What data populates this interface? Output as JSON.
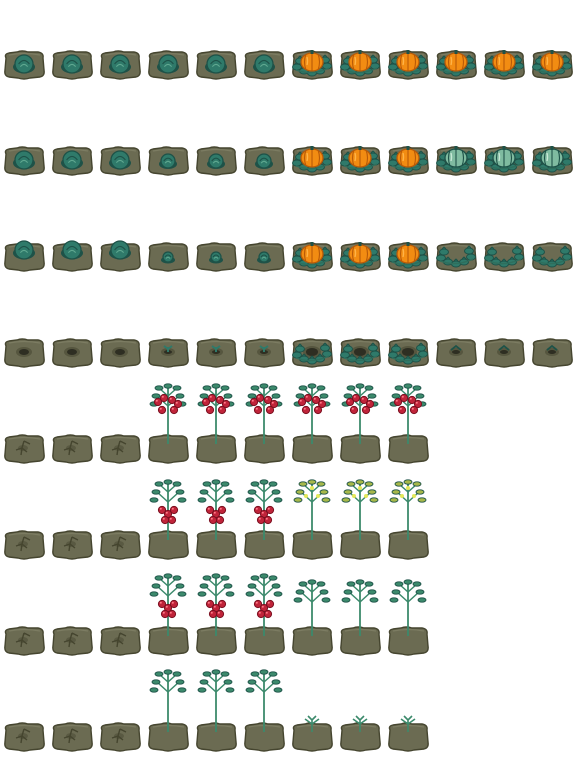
{
  "sprite_sheet": {
    "columns": 12,
    "rows": 8,
    "colors": {
      "soil": "#6b6b52",
      "soil_dark": "#45452f",
      "soil_light": "#83836a",
      "hole": "#2e2e22",
      "leaf": "#2f7a6a",
      "leaf_dark": "#1e5248",
      "leaf_light": "#5fa890",
      "cabbage_pale": "#7fbba0",
      "pumpkin": "#f28c12",
      "pumpkin_dark": "#b85a08",
      "pumpkin_light": "#ffb347",
      "stem": "#2f6e5c",
      "tomato": "#c0243a",
      "tomato_dark": "#7a1020",
      "tomato_light": "#ff7a88",
      "vine": "#3c8a6c",
      "vine_yellow": "#a6b84a"
    },
    "rows_data": [
      [
        "cabbage-3",
        "cabbage-3",
        "cabbage-3",
        "cabbage-3",
        "cabbage-3",
        "cabbage-3",
        "pumpkin-ripe",
        "pumpkin-ripe",
        "pumpkin-ripe",
        "pumpkin-ripe",
        "pumpkin-ripe",
        "pumpkin-ripe"
      ],
      [
        "cabbage-3",
        "cabbage-3",
        "cabbage-3",
        "cabbage-2",
        "cabbage-2",
        "cabbage-2",
        "pumpkin-ripe",
        "pumpkin-ripe",
        "pumpkin-ripe",
        "pumpkin-green",
        "pumpkin-green",
        "pumpkin-green"
      ],
      [
        "cabbage-tall",
        "cabbage-tall",
        "cabbage-tall",
        "cabbage-1",
        "cabbage-1",
        "cabbage-1",
        "pumpkin-ripe",
        "pumpkin-ripe",
        "pumpkin-ripe",
        "pumpkin-vine",
        "pumpkin-vine",
        "pumpkin-vine"
      ],
      [
        "hole",
        "hole",
        "hole",
        "sprout",
        "sprout",
        "sprout",
        "vine-hole",
        "vine-hole",
        "vine-hole",
        "sprout-small",
        "sprout-small",
        "sprout-small"
      ],
      [
        "soil-crack",
        "soil-crack",
        "soil-crack",
        "tomato-full",
        "tomato-full",
        "tomato-full",
        "tomato-full",
        "tomato-full",
        "tomato-full",
        null,
        null,
        null
      ],
      [
        "soil-crack",
        "soil-crack",
        "soil-crack",
        "tomato-ripe",
        "tomato-ripe",
        "tomato-ripe",
        "tomato-flower",
        "tomato-flower",
        "tomato-flower",
        null,
        null,
        null
      ],
      [
        "soil-crack",
        "soil-crack",
        "soil-crack",
        "tomato-hang",
        "tomato-hang",
        "tomato-hang",
        "tomato-plant",
        "tomato-plant",
        "tomato-plant",
        null,
        null,
        null
      ],
      [
        "soil-crack",
        "soil-crack",
        "soil-crack",
        "tomato-young",
        "tomato-young",
        "tomato-young",
        "tomato-seedling",
        "tomato-seedling",
        "tomato-seedling",
        null,
        null,
        null
      ]
    ]
  }
}
